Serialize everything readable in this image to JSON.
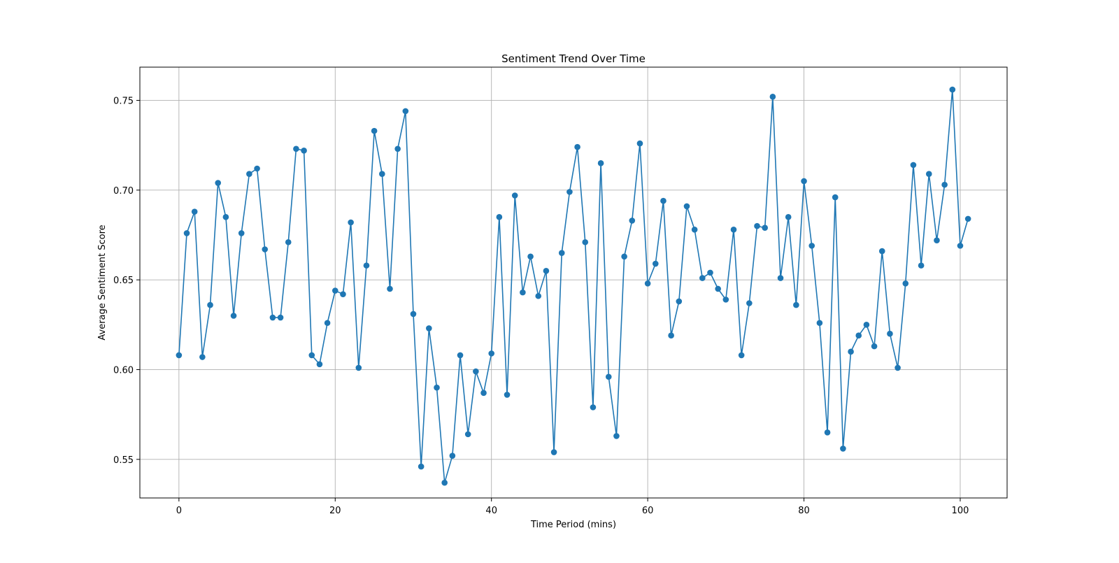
{
  "chart_data": {
    "type": "line",
    "title": "Sentiment Trend Over Time",
    "xlabel": "Time Period (mins)",
    "ylabel": "Average Sentiment Score",
    "xlim": [
      -5,
      106
    ],
    "ylim": [
      0.5285,
      0.7685
    ],
    "grid": true,
    "xticks": [
      0,
      20,
      40,
      60,
      80,
      100
    ],
    "yticks": [
      0.55,
      0.6,
      0.65,
      0.7,
      0.75
    ],
    "xtick_labels": [
      "0",
      "20",
      "40",
      "60",
      "80",
      "100"
    ],
    "ytick_labels": [
      "0.55",
      "0.60",
      "0.65",
      "0.70",
      "0.75"
    ],
    "line_color": "#1f77b4",
    "marker": "circle",
    "series": [
      {
        "x": [
          0,
          1,
          2,
          3,
          4,
          5,
          6,
          7,
          8,
          9,
          10,
          11,
          12,
          13,
          14,
          15,
          16,
          17,
          18,
          19,
          20,
          21,
          22,
          23,
          24,
          25,
          26,
          27,
          28,
          29,
          30,
          31,
          32,
          33,
          34,
          35,
          36,
          37,
          38,
          39,
          40,
          41,
          42,
          43,
          44,
          45,
          46,
          47,
          48,
          49,
          50,
          51,
          52,
          53,
          54,
          55,
          56,
          57,
          58,
          59,
          60,
          61,
          62,
          63,
          64,
          65,
          66,
          67,
          68,
          69,
          70,
          71,
          72,
          73,
          74,
          75,
          76,
          77,
          78,
          79,
          80,
          81,
          82,
          83,
          84,
          85,
          86,
          87,
          88,
          89,
          90,
          91,
          92,
          93,
          94,
          95,
          96,
          97,
          98,
          99,
          100,
          101
        ],
        "values": [
          0.608,
          0.676,
          0.688,
          0.607,
          0.636,
          0.704,
          0.685,
          0.63,
          0.676,
          0.709,
          0.712,
          0.667,
          0.629,
          0.629,
          0.671,
          0.723,
          0.722,
          0.608,
          0.603,
          0.626,
          0.644,
          0.642,
          0.682,
          0.601,
          0.658,
          0.733,
          0.709,
          0.645,
          0.723,
          0.744,
          0.631,
          0.546,
          0.623,
          0.59,
          0.537,
          0.552,
          0.608,
          0.564,
          0.599,
          0.587,
          0.609,
          0.685,
          0.586,
          0.697,
          0.643,
          0.663,
          0.641,
          0.655,
          0.554,
          0.665,
          0.699,
          0.724,
          0.671,
          0.579,
          0.715,
          0.596,
          0.563,
          0.663,
          0.683,
          0.726,
          0.648,
          0.659,
          0.694,
          0.619,
          0.638,
          0.691,
          0.678,
          0.651,
          0.654,
          0.645,
          0.639,
          0.678,
          0.608,
          0.637,
          0.68,
          0.679,
          0.752,
          0.651,
          0.685,
          0.636,
          0.705,
          0.669,
          0.626,
          0.565,
          0.696,
          0.556,
          0.61,
          0.619,
          0.625,
          0.613,
          0.666,
          0.62,
          0.601,
          0.648,
          0.714,
          0.658,
          0.709,
          0.672,
          0.703,
          0.756,
          0.669,
          0.684
        ]
      }
    ]
  }
}
